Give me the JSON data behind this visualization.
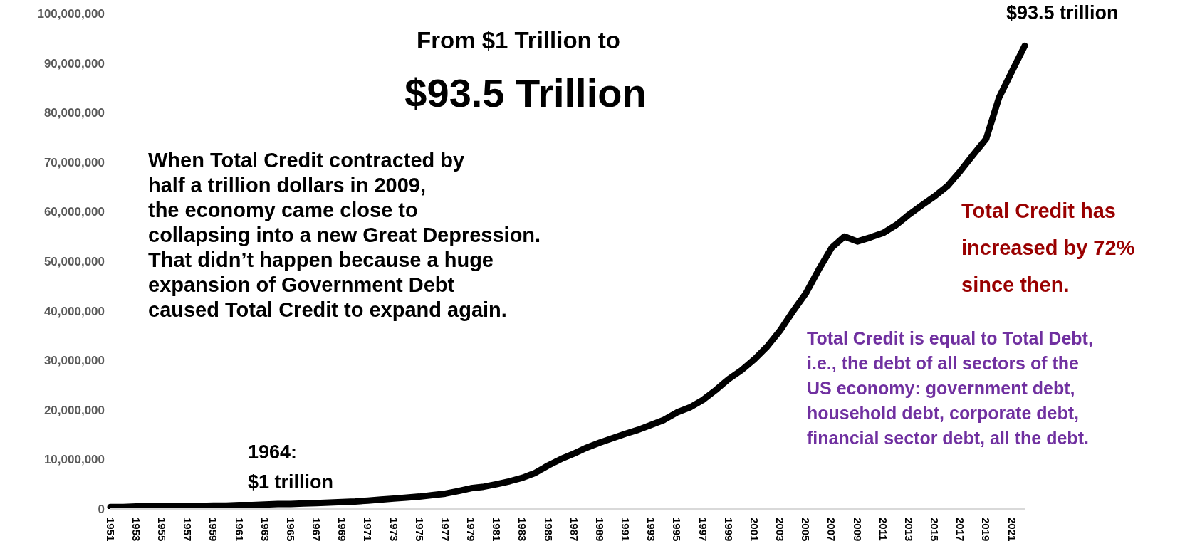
{
  "chart_data": {
    "type": "line",
    "title": "From $1 Trillion to",
    "subtitle": "$93.5 Trillion",
    "categories": [
      "1951",
      null,
      "1953",
      null,
      "1955",
      null,
      "1957",
      null,
      "1959",
      null,
      "1961",
      null,
      "1963",
      null,
      "1965",
      null,
      "1967",
      null,
      "1969",
      null,
      "1971",
      null,
      "1973",
      null,
      "1975",
      null,
      "1977",
      null,
      "1979",
      null,
      "1981",
      null,
      "1983",
      null,
      "1985",
      null,
      "1987",
      null,
      "1989",
      null,
      "1991",
      null,
      "1993",
      null,
      "1995",
      null,
      "1997",
      null,
      "1999",
      null,
      "2001",
      null,
      "2003",
      null,
      "2005",
      null,
      "2007",
      null,
      "2009",
      null,
      "2011",
      null,
      "2013",
      null,
      "2015",
      null,
      "2017",
      null,
      "2019",
      null,
      "2021",
      null
    ],
    "series": [
      {
        "color": "#000000",
        "values": [
          400000,
          400000,
          500000,
          500000,
          500000,
          600000,
          600000,
          600000,
          700000,
          700000,
          800000,
          800000,
          900000,
          1000000,
          1000000,
          1100000,
          1200000,
          1300000,
          1400000,
          1500000,
          1700000,
          1900000,
          2100000,
          2300000,
          2500000,
          2800000,
          3100000,
          3600000,
          4200000,
          4500000,
          5000000,
          5600000,
          6300000,
          7300000,
          8800000,
          10100000,
          11200000,
          12400000,
          13400000,
          14300000,
          15200000,
          16000000,
          17000000,
          18000000,
          19500000,
          20500000,
          22000000,
          24000000,
          26200000,
          28000000,
          30200000,
          32800000,
          36000000,
          39900000,
          43500000,
          48300000,
          52700000,
          55000000,
          54000000,
          54800000,
          55700000,
          57300000,
          59400000,
          61300000,
          63100000,
          65200000,
          68200000,
          71500000,
          74700000,
          83000000,
          88300000,
          93500000
        ]
      }
    ],
    "ylim": [
      0,
      100000000
    ],
    "yticks": [
      0,
      {
        "value": 10000000,
        "label": "10,000,000"
      },
      {
        "value": 20000000,
        "label": "20,000,000"
      },
      {
        "value": 30000000,
        "label": "30,000,000"
      },
      {
        "value": 40000000,
        "label": "40,000,000"
      },
      {
        "value": 50000000,
        "label": "50,000,000"
      },
      {
        "value": 60000000,
        "label": "60,000,000"
      },
      {
        "value": 70000000,
        "label": "70,000,000"
      },
      {
        "value": 80000000,
        "label": "80,000,000"
      },
      {
        "value": 90000000,
        "label": "90,000,000"
      },
      {
        "value": 100000000,
        "label": "100,000,000"
      }
    ],
    "grid": false,
    "legend": false,
    "marker": "none",
    "line_style": "solid",
    "annotations": [
      "$93.5 trillion",
      "1964:\n$1 trillion",
      "When Total Credit contracted by\nhalf a trillion dollars in 2009,\nthe economy came close to\ncollapsing into a new Great Depression.\nThat didn’t happen because a huge\nexpansion of Government Debt\ncaused Total Credit to expand again.",
      "Total Credit has\nincreased by 72%\nsince then.",
      "Total Credit is equal to Total Debt,\ni.e., the debt of all sectors of the\nUS economy: government debt,\nhousehold debt, corporate debt,\nfinancial sector debt, all the debt."
    ]
  }
}
